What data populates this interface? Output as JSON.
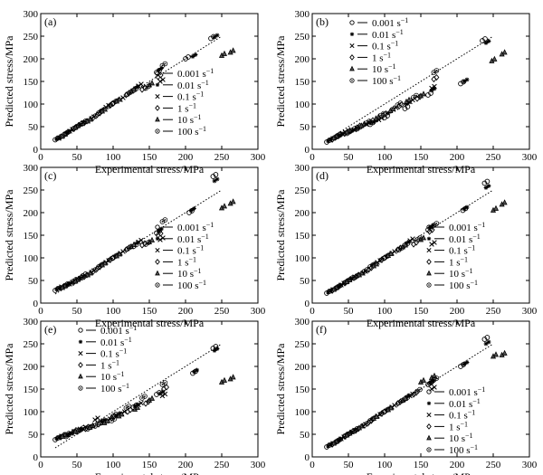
{
  "figure": {
    "legend_entries": [
      {
        "rate": "0.001",
        "unit": "s",
        "exp": "−1",
        "marker": "circle"
      },
      {
        "rate": "0.01",
        "unit": "s",
        "exp": "−1",
        "marker": "star"
      },
      {
        "rate": "0.1",
        "unit": "s",
        "exp": "−1",
        "marker": "x"
      },
      {
        "rate": "1",
        "unit": "s",
        "exp": "−1",
        "marker": "diamond"
      },
      {
        "rate": "10",
        "unit": "s",
        "exp": "−1",
        "marker": "triangle"
      },
      {
        "rate": "100",
        "unit": "s",
        "exp": "−1",
        "marker": "hexagon"
      }
    ]
  },
  "chart_data": [
    {
      "type": "scatter",
      "panel_label": "(a)",
      "xlabel": "Experimental stress/MPa",
      "ylabel": "Predicted stress/MPa",
      "xlim": [
        0,
        300
      ],
      "ylim": [
        0,
        300
      ],
      "xticks": [
        0,
        50,
        100,
        150,
        200,
        250,
        300
      ],
      "yticks": [
        0,
        50,
        100,
        150,
        200,
        250,
        300
      ],
      "reference_line": "y = x (dotted)",
      "legend_position": "middle-right",
      "series": [
        {
          "name": "0.001 s⁻¹",
          "marker": "circle",
          "x": [
            20,
            33,
            45,
            58,
            80,
            100,
            128,
            160,
            200,
            235
          ],
          "y": [
            21,
            33,
            45,
            58,
            80,
            102,
            130,
            170,
            200,
            245
          ]
        },
        {
          "name": "0.01 s⁻¹",
          "marker": "star",
          "x": [
            22,
            36,
            50,
            65,
            83,
            103,
            130,
            163,
            210,
            240
          ],
          "y": [
            22,
            36,
            50,
            62,
            85,
            105,
            135,
            175,
            205,
            248
          ]
        },
        {
          "name": "0.1 s⁻¹",
          "marker": "x",
          "x": [
            25,
            40,
            55,
            70,
            90,
            110,
            135,
            165
          ],
          "y": [
            24,
            40,
            55,
            68,
            93,
            110,
            140,
            150
          ]
        },
        {
          "name": "1 s⁻¹",
          "marker": "diamond",
          "x": [
            28,
            45,
            60,
            78,
            96,
            118,
            140,
            162
          ],
          "y": [
            28,
            45,
            58,
            76,
            97,
            120,
            132,
            160
          ]
        },
        {
          "name": "10 s⁻¹",
          "marker": "triangle",
          "x": [
            30,
            48,
            65,
            85,
            105,
            125,
            150,
            250,
            262
          ],
          "y": [
            29,
            48,
            62,
            84,
            106,
            128,
            142,
            207,
            214
          ]
        },
        {
          "name": "100 s⁻¹",
          "marker": "hexagon",
          "x": [
            35,
            52,
            72,
            95,
            120,
            145,
            168
          ],
          "y": [
            35,
            52,
            70,
            96,
            122,
            135,
            185
          ]
        }
      ]
    },
    {
      "type": "scatter",
      "panel_label": "(b)",
      "xlabel": "Experimental stress/MPa",
      "ylabel": "Predicted stress/MPa",
      "xlim": [
        0,
        300
      ],
      "ylim": [
        0,
        300
      ],
      "xticks": [
        0,
        50,
        100,
        150,
        200,
        250,
        300
      ],
      "yticks": [
        0,
        50,
        100,
        150,
        200,
        250,
        300
      ],
      "reference_line": "y = x (dotted)",
      "legend_position": "top-left",
      "series": [
        {
          "name": "0.001 s⁻¹",
          "marker": "circle",
          "x": [
            20,
            35,
            48,
            62,
            80,
            100,
            128,
            160,
            205,
            235
          ],
          "y": [
            16,
            28,
            35,
            45,
            55,
            70,
            90,
            120,
            145,
            240
          ]
        },
        {
          "name": "0.01 s⁻¹",
          "marker": "star",
          "x": [
            22,
            38,
            52,
            68,
            85,
            105,
            130,
            165,
            210,
            240
          ],
          "y": [
            18,
            30,
            38,
            50,
            60,
            80,
            100,
            130,
            150,
            235
          ]
        },
        {
          "name": "0.1 s⁻¹",
          "marker": "x",
          "x": [
            25,
            42,
            58,
            75,
            92,
            112,
            135,
            165
          ],
          "y": [
            20,
            33,
            43,
            55,
            65,
            88,
            105,
            135
          ]
        },
        {
          "name": "1 s⁻¹",
          "marker": "diamond",
          "x": [
            28,
            45,
            62,
            80,
            98,
            120,
            145,
            168
          ],
          "y": [
            22,
            35,
            48,
            60,
            75,
            95,
            112,
            155
          ]
        },
        {
          "name": "10 s⁻¹",
          "marker": "triangle",
          "x": [
            30,
            48,
            68,
            88,
            108,
            130,
            150,
            248,
            262
          ],
          "y": [
            25,
            38,
            52,
            68,
            85,
            105,
            118,
            195,
            210
          ]
        },
        {
          "name": "100 s⁻¹",
          "marker": "hexagon",
          "x": [
            35,
            55,
            75,
            95,
            118,
            140,
            168
          ],
          "y": [
            30,
            42,
            58,
            75,
            98,
            115,
            170
          ]
        }
      ]
    },
    {
      "type": "scatter",
      "panel_label": "(c)",
      "xlabel": "Experimental stress/MPa",
      "ylabel": "Predicted stress/MPa",
      "xlim": [
        0,
        300
      ],
      "ylim": [
        0,
        300
      ],
      "xticks": [
        0,
        50,
        100,
        150,
        200,
        250,
        300
      ],
      "yticks": [
        0,
        50,
        100,
        150,
        200,
        250,
        300
      ],
      "reference_line": "y = x (dotted)",
      "legend_position": "middle-right",
      "series": [
        {
          "name": "0.001 s⁻¹",
          "marker": "circle",
          "x": [
            20,
            33,
            45,
            58,
            80,
            100,
            128,
            160,
            205,
            238
          ],
          "y": [
            28,
            38,
            48,
            60,
            80,
            100,
            125,
            155,
            200,
            280
          ]
        },
        {
          "name": "0.01 s⁻¹",
          "marker": "star",
          "x": [
            22,
            36,
            50,
            65,
            83,
            103,
            130,
            163,
            208,
            240
          ],
          "y": [
            30,
            40,
            52,
            62,
            84,
            104,
            130,
            160,
            205,
            270
          ]
        },
        {
          "name": "0.1 s⁻¹",
          "marker": "x",
          "x": [
            25,
            40,
            55,
            70,
            90,
            110,
            135,
            165
          ],
          "y": [
            32,
            42,
            55,
            68,
            90,
            110,
            135,
            140
          ]
        },
        {
          "name": "1 s⁻¹",
          "marker": "diamond",
          "x": [
            28,
            45,
            60,
            78,
            96,
            118,
            140,
            162
          ],
          "y": [
            33,
            45,
            58,
            76,
            96,
            118,
            128,
            150
          ]
        },
        {
          "name": "10 s⁻¹",
          "marker": "triangle",
          "x": [
            30,
            48,
            65,
            85,
            105,
            125,
            150,
            250,
            262
          ],
          "y": [
            34,
            48,
            62,
            84,
            104,
            125,
            135,
            210,
            220
          ]
        },
        {
          "name": "100 s⁻¹",
          "marker": "hexagon",
          "x": [
            35,
            52,
            72,
            95,
            120,
            145,
            168
          ],
          "y": [
            38,
            52,
            70,
            95,
            120,
            130,
            180
          ]
        }
      ]
    },
    {
      "type": "scatter",
      "panel_label": "(d)",
      "xlabel": "Experimental stress/MPa",
      "ylabel": "Predicted stress/MPa",
      "xlim": [
        0,
        300
      ],
      "ylim": [
        0,
        300
      ],
      "xticks": [
        0,
        50,
        100,
        150,
        200,
        250,
        300
      ],
      "yticks": [
        0,
        50,
        100,
        150,
        200,
        250,
        300
      ],
      "reference_line": "y = x (dotted)",
      "legend_position": "middle-right",
      "series": [
        {
          "name": "0.001 s⁻¹",
          "marker": "circle",
          "x": [
            20,
            33,
            45,
            58,
            80,
            100,
            128,
            160,
            208,
            238
          ],
          "y": [
            22,
            33,
            45,
            56,
            80,
            100,
            128,
            162,
            205,
            265
          ]
        },
        {
          "name": "0.01 s⁻¹",
          "marker": "star",
          "x": [
            22,
            36,
            50,
            65,
            83,
            103,
            130,
            163,
            210,
            240
          ],
          "y": [
            24,
            36,
            50,
            62,
            84,
            104,
            132,
            168,
            208,
            255
          ]
        },
        {
          "name": "0.1 s⁻¹",
          "marker": "x",
          "x": [
            25,
            40,
            55,
            70,
            90,
            110,
            135,
            165
          ],
          "y": [
            26,
            40,
            54,
            66,
            90,
            110,
            138,
            130
          ]
        },
        {
          "name": "1 s⁻¹",
          "marker": "diamond",
          "x": [
            28,
            45,
            60,
            78,
            96,
            118,
            140,
            162
          ],
          "y": [
            28,
            44,
            58,
            74,
            96,
            118,
            130,
            158
          ]
        },
        {
          "name": "10 s⁻¹",
          "marker": "triangle",
          "x": [
            30,
            48,
            65,
            85,
            105,
            125,
            150,
            250,
            262
          ],
          "y": [
            30,
            47,
            62,
            82,
            105,
            124,
            140,
            205,
            218
          ]
        },
        {
          "name": "100 s⁻¹",
          "marker": "hexagon",
          "x": [
            35,
            52,
            72,
            95,
            120,
            145,
            168
          ],
          "y": [
            35,
            52,
            70,
            95,
            118,
            140,
            172
          ]
        }
      ]
    },
    {
      "type": "scatter",
      "panel_label": "(e)",
      "xlabel": "Experimental stress/MPa",
      "ylabel": "Predicted stress/MPa",
      "xlim": [
        0,
        300
      ],
      "ylim": [
        0,
        300
      ],
      "xticks": [
        0,
        50,
        100,
        150,
        200,
        250,
        300
      ],
      "yticks": [
        0,
        50,
        100,
        150,
        200,
        250,
        300
      ],
      "reference_line": "y = x (dotted)",
      "legend_position": "top-left",
      "series": [
        {
          "name": "0.001 s⁻¹",
          "marker": "circle",
          "x": [
            20,
            35,
            50,
            65,
            82,
            100,
            128,
            160,
            210,
            238
          ],
          "y": [
            38,
            45,
            55,
            62,
            75,
            90,
            110,
            138,
            185,
            240
          ]
        },
        {
          "name": "0.01 s⁻¹",
          "marker": "star",
          "x": [
            22,
            38,
            52,
            68,
            85,
            105,
            130,
            165,
            212,
            240
          ],
          "y": [
            40,
            48,
            58,
            65,
            78,
            92,
            112,
            140,
            188,
            235
          ]
        },
        {
          "name": "0.1 s⁻¹",
          "marker": "x",
          "x": [
            25,
            42,
            58,
            75,
            92,
            112,
            135,
            168
          ],
          "y": [
            42,
            52,
            62,
            82,
            80,
            96,
            115,
            135
          ]
        },
        {
          "name": "1 s⁻¹",
          "marker": "diamond",
          "x": [
            28,
            45,
            62,
            80,
            98,
            120,
            145,
            170
          ],
          "y": [
            44,
            55,
            62,
            72,
            86,
            100,
            118,
            150
          ]
        },
        {
          "name": "10 s⁻¹",
          "marker": "triangle",
          "x": [
            30,
            48,
            68,
            88,
            108,
            130,
            150,
            250,
            262
          ],
          "y": [
            45,
            56,
            65,
            75,
            90,
            105,
            125,
            165,
            172
          ]
        },
        {
          "name": "100 s⁻¹",
          "marker": "hexagon",
          "x": [
            35,
            55,
            75,
            98,
            118,
            140,
            168
          ],
          "y": [
            48,
            60,
            68,
            80,
            108,
            130,
            160
          ]
        }
      ]
    },
    {
      "type": "scatter",
      "panel_label": "(f)",
      "xlabel": "Experimental stress/MPa",
      "ylabel": "Predicted stress/MPa",
      "xlim": [
        0,
        300
      ],
      "ylim": [
        0,
        300
      ],
      "xticks": [
        0,
        50,
        100,
        150,
        200,
        250,
        300
      ],
      "yticks": [
        0,
        50,
        100,
        150,
        200,
        250,
        300
      ],
      "reference_line": "y = x (dotted)",
      "legend_position": "bottom-right",
      "series": [
        {
          "name": "0.001 s⁻¹",
          "marker": "circle",
          "x": [
            20,
            33,
            45,
            58,
            80,
            100,
            128,
            160,
            205,
            238
          ],
          "y": [
            22,
            33,
            46,
            58,
            80,
            100,
            128,
            160,
            200,
            260
          ]
        },
        {
          "name": "0.01 s⁻¹",
          "marker": "star",
          "x": [
            22,
            36,
            50,
            65,
            83,
            103,
            130,
            163,
            210,
            240
          ],
          "y": [
            24,
            36,
            50,
            64,
            84,
            104,
            132,
            164,
            205,
            250
          ]
        },
        {
          "name": "0.1 s⁻¹",
          "marker": "x",
          "x": [
            25,
            40,
            55,
            70,
            90,
            110,
            135,
            165
          ],
          "y": [
            26,
            40,
            55,
            68,
            90,
            110,
            135,
            150
          ]
        },
        {
          "name": "1 s⁻¹",
          "marker": "diamond",
          "x": [
            28,
            45,
            60,
            78,
            96,
            118,
            140,
            162
          ],
          "y": [
            28,
            45,
            58,
            76,
            96,
            118,
            138,
            162
          ]
        },
        {
          "name": "10 s⁻¹",
          "marker": "triangle",
          "x": [
            30,
            48,
            65,
            85,
            105,
            125,
            150,
            165,
            250,
            262
          ],
          "y": [
            30,
            48,
            64,
            85,
            104,
            125,
            165,
            175,
            222,
            225
          ]
        },
        {
          "name": "100 s⁻¹",
          "marker": "hexagon",
          "x": [
            35,
            52,
            72,
            95,
            120,
            145,
            168
          ],
          "y": [
            35,
            52,
            70,
            95,
            120,
            145,
            170
          ]
        }
      ]
    }
  ]
}
